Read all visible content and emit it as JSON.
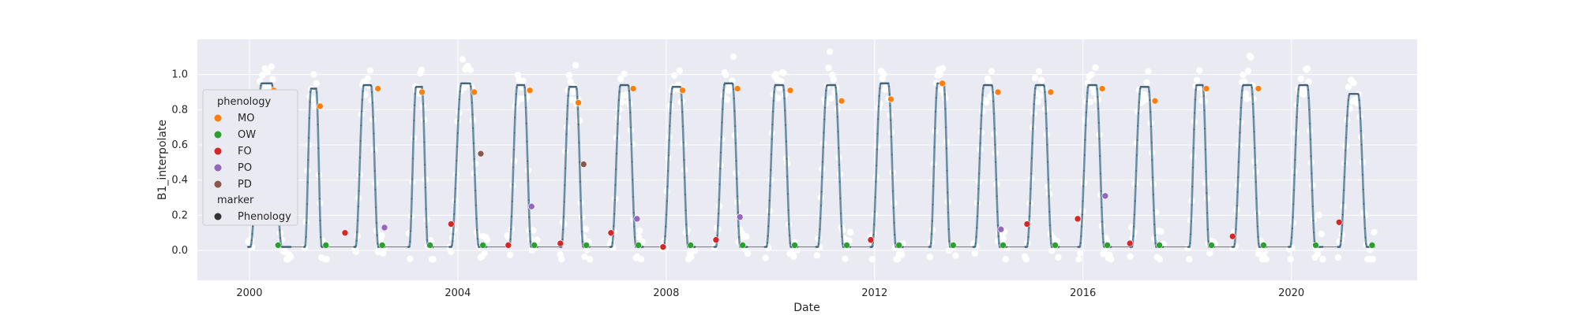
{
  "chart_data": {
    "type": "scatter",
    "title": "",
    "xlabel": "Date",
    "ylabel": "B1_interpolate",
    "x_axis_type": "date",
    "xlim": [
      "1999-01-01",
      "2022-06-01"
    ],
    "ylim": [
      -0.17,
      1.2
    ],
    "x_ticks": [
      {
        "date": "2000-01-01",
        "label": "2000"
      },
      {
        "date": "2004-01-01",
        "label": "2004"
      },
      {
        "date": "2008-01-01",
        "label": "2008"
      },
      {
        "date": "2012-01-01",
        "label": "2012"
      },
      {
        "date": "2016-01-01",
        "label": "2016"
      },
      {
        "date": "2020-01-01",
        "label": "2020"
      }
    ],
    "y_ticks": [
      {
        "value": 0.0,
        "label": "0.0"
      },
      {
        "value": 0.2,
        "label": "0.2"
      },
      {
        "value": 0.4,
        "label": "0.4"
      },
      {
        "value": 0.6,
        "label": "0.6"
      },
      {
        "value": 0.8,
        "label": "0.8"
      },
      {
        "value": 1.0,
        "label": "1.0"
      }
    ],
    "grid": true,
    "legend_position": "center-left",
    "legend": {
      "hue_title": "phenology",
      "marker_title": "marker",
      "entries": [
        {
          "label": "MO",
          "color": "#ff7f0e"
        },
        {
          "label": "OW",
          "color": "#2ca02c"
        },
        {
          "label": "FO",
          "color": "#d62728"
        },
        {
          "label": "PO",
          "color": "#9467bd"
        },
        {
          "label": "PD",
          "color": "#8c564b"
        }
      ],
      "marker_entries": [
        {
          "label": "Phenology",
          "color": "#333333"
        }
      ]
    },
    "colors": {
      "background": "#eaeaf2",
      "grid": "#ffffff",
      "raw_points": "#ffffff",
      "interpolated_line": "#6a8fa5",
      "daily_dots": "#3f5c70",
      "connector": "#7a7a7a"
    },
    "seasonal_profile": {
      "rise_start_x": 0.06,
      "peak_plateau_start_x": 0.32,
      "peak_plateau_end_x": 0.55,
      "trough_x": 0.78,
      "trough_level": 0.02
    },
    "cycles": [
      {
        "year": 2000,
        "start": "1999-12-20",
        "end": "2000-10-20",
        "peak": 0.95,
        "MO": "2000-06-20",
        "MO_val": 0.91,
        "OW": "2000-07-20",
        "FO": "2000-10-25"
      },
      {
        "year": 2001,
        "start": "2001-01-15",
        "end": "2001-06-25",
        "peak": 0.92,
        "MO": "2001-05-10",
        "MO_val": 0.82,
        "OW": "2001-06-20",
        "FO": "2001-11-01",
        "FO_val": 0.1
      },
      {
        "year": 2002,
        "start": "2002-01-01",
        "end": "2002-08-10",
        "peak": 0.94,
        "MO": "2002-06-20",
        "MO_val": 0.92,
        "OW": "2002-07-20",
        "PO": "2002-08-05",
        "PO_val": 0.13
      },
      {
        "year": 2003,
        "start": "2003-01-15",
        "end": "2003-07-15",
        "peak": 0.93,
        "MO": "2003-04-25",
        "MO_val": 0.9,
        "OW": "2003-06-20"
      },
      {
        "year": 2004,
        "start": "2003-11-01",
        "end": "2004-07-25",
        "peak": 0.95,
        "MO": "2004-04-25",
        "MO_val": 0.9,
        "FO": "2003-11-15",
        "FO_val": 0.15,
        "PD": "2004-06-10",
        "PD_val": 0.55,
        "OW": "2004-06-25"
      },
      {
        "year": 2005,
        "start": "2004-12-15",
        "end": "2005-07-15",
        "peak": 0.94,
        "MO": "2005-05-20",
        "MO_val": 0.91,
        "FO": "2004-12-20",
        "FO_val": 0.03,
        "PO": "2005-06-01",
        "PO_val": 0.25,
        "OW": "2005-06-20"
      },
      {
        "year": 2006,
        "start": "2005-12-15",
        "end": "2006-07-15",
        "peak": 0.93,
        "MO": "2006-04-25",
        "MO_val": 0.84,
        "FO": "2005-12-20",
        "FO_val": 0.04,
        "PD": "2006-06-01",
        "PD_val": 0.49,
        "OW": "2006-06-20"
      },
      {
        "year": 2007,
        "start": "2006-12-01",
        "end": "2007-07-25",
        "peak": 0.94,
        "MO": "2007-05-15",
        "MO_val": 0.92,
        "FO": "2006-12-10",
        "FO_val": 0.1,
        "PO": "2007-06-10",
        "PO_val": 0.18,
        "OW": "2007-06-20"
      },
      {
        "year": 2008,
        "start": "2007-12-01",
        "end": "2008-07-25",
        "peak": 0.93,
        "MO": "2008-04-25",
        "MO_val": 0.91,
        "FO": "2007-12-10",
        "FO_val": 0.02,
        "OW": "2008-06-20"
      },
      {
        "year": 2009,
        "start": "2008-12-01",
        "end": "2009-07-25",
        "peak": 0.95,
        "MO": "2009-05-15",
        "MO_val": 0.92,
        "FO": "2008-12-15",
        "FO_val": 0.06,
        "PO": "2009-06-01",
        "PO_val": 0.19,
        "OW": "2009-06-20"
      },
      {
        "year": 2010,
        "start": "2009-11-20",
        "end": "2010-07-15",
        "peak": 0.94,
        "MO": "2010-05-20",
        "MO_val": 0.91,
        "OW": "2010-06-20"
      },
      {
        "year": 2011,
        "start": "2010-11-15",
        "end": "2011-07-20",
        "peak": 0.94,
        "MO": "2011-05-15",
        "MO_val": 0.85,
        "OW": "2011-06-20"
      },
      {
        "year": 2012,
        "start": "2011-12-01",
        "end": "2012-07-20",
        "peak": 0.95,
        "MO": "2012-04-25",
        "MO_val": 0.86,
        "FO": "2011-12-05",
        "FO_val": 0.06,
        "OW": "2012-06-20"
      },
      {
        "year": 2013,
        "start": "2013-01-15",
        "end": "2013-07-25",
        "peak": 0.95,
        "MO": "2013-04-20",
        "MO_val": 0.95,
        "OW": "2013-07-05"
      },
      {
        "year": 2014,
        "start": "2013-11-20",
        "end": "2014-07-20",
        "peak": 0.94,
        "MO": "2014-05-15",
        "MO_val": 0.9,
        "PO": "2014-06-05",
        "PO_val": 0.12,
        "OW": "2014-06-20"
      },
      {
        "year": 2015,
        "start": "2014-11-20",
        "end": "2015-07-20",
        "peak": 0.94,
        "MO": "2015-05-20",
        "MO_val": 0.9,
        "FO": "2014-12-05",
        "FO_val": 0.15,
        "OW": "2015-06-20"
      },
      {
        "year": 2016,
        "start": "2015-11-25",
        "end": "2016-07-20",
        "peak": 0.94,
        "MO": "2016-05-15",
        "MO_val": 0.92,
        "FO": "2015-11-25",
        "FO_val": 0.18,
        "PO": "2016-06-05",
        "PO_val": 0.31,
        "OW": "2016-06-20"
      },
      {
        "year": 2017,
        "start": "2016-11-25",
        "end": "2017-07-20",
        "peak": 0.93,
        "MO": "2017-05-20",
        "MO_val": 0.85,
        "FO": "2016-11-25",
        "FO_val": 0.04,
        "OW": "2017-06-20"
      },
      {
        "year": 2018,
        "start": "2018-01-05",
        "end": "2018-07-15",
        "peak": 0.94,
        "MO": "2018-05-15",
        "MO_val": 0.92,
        "OW": "2018-06-20"
      },
      {
        "year": 2019,
        "start": "2018-11-10",
        "end": "2019-07-15",
        "peak": 0.94,
        "MO": "2019-05-15",
        "MO_val": 0.92,
        "FO": "2018-11-15",
        "FO_val": 0.08,
        "OW": "2019-06-20"
      },
      {
        "year": 2020,
        "start": "2019-12-10",
        "end": "2020-08-10",
        "peak": 0.94,
        "OW": "2020-06-20"
      },
      {
        "year": 2021,
        "start": "2020-11-20",
        "end": "2021-08-10",
        "peak": 0.89,
        "FO": "2020-12-01",
        "FO_val": 0.16,
        "OW": "2021-07-20"
      }
    ]
  }
}
